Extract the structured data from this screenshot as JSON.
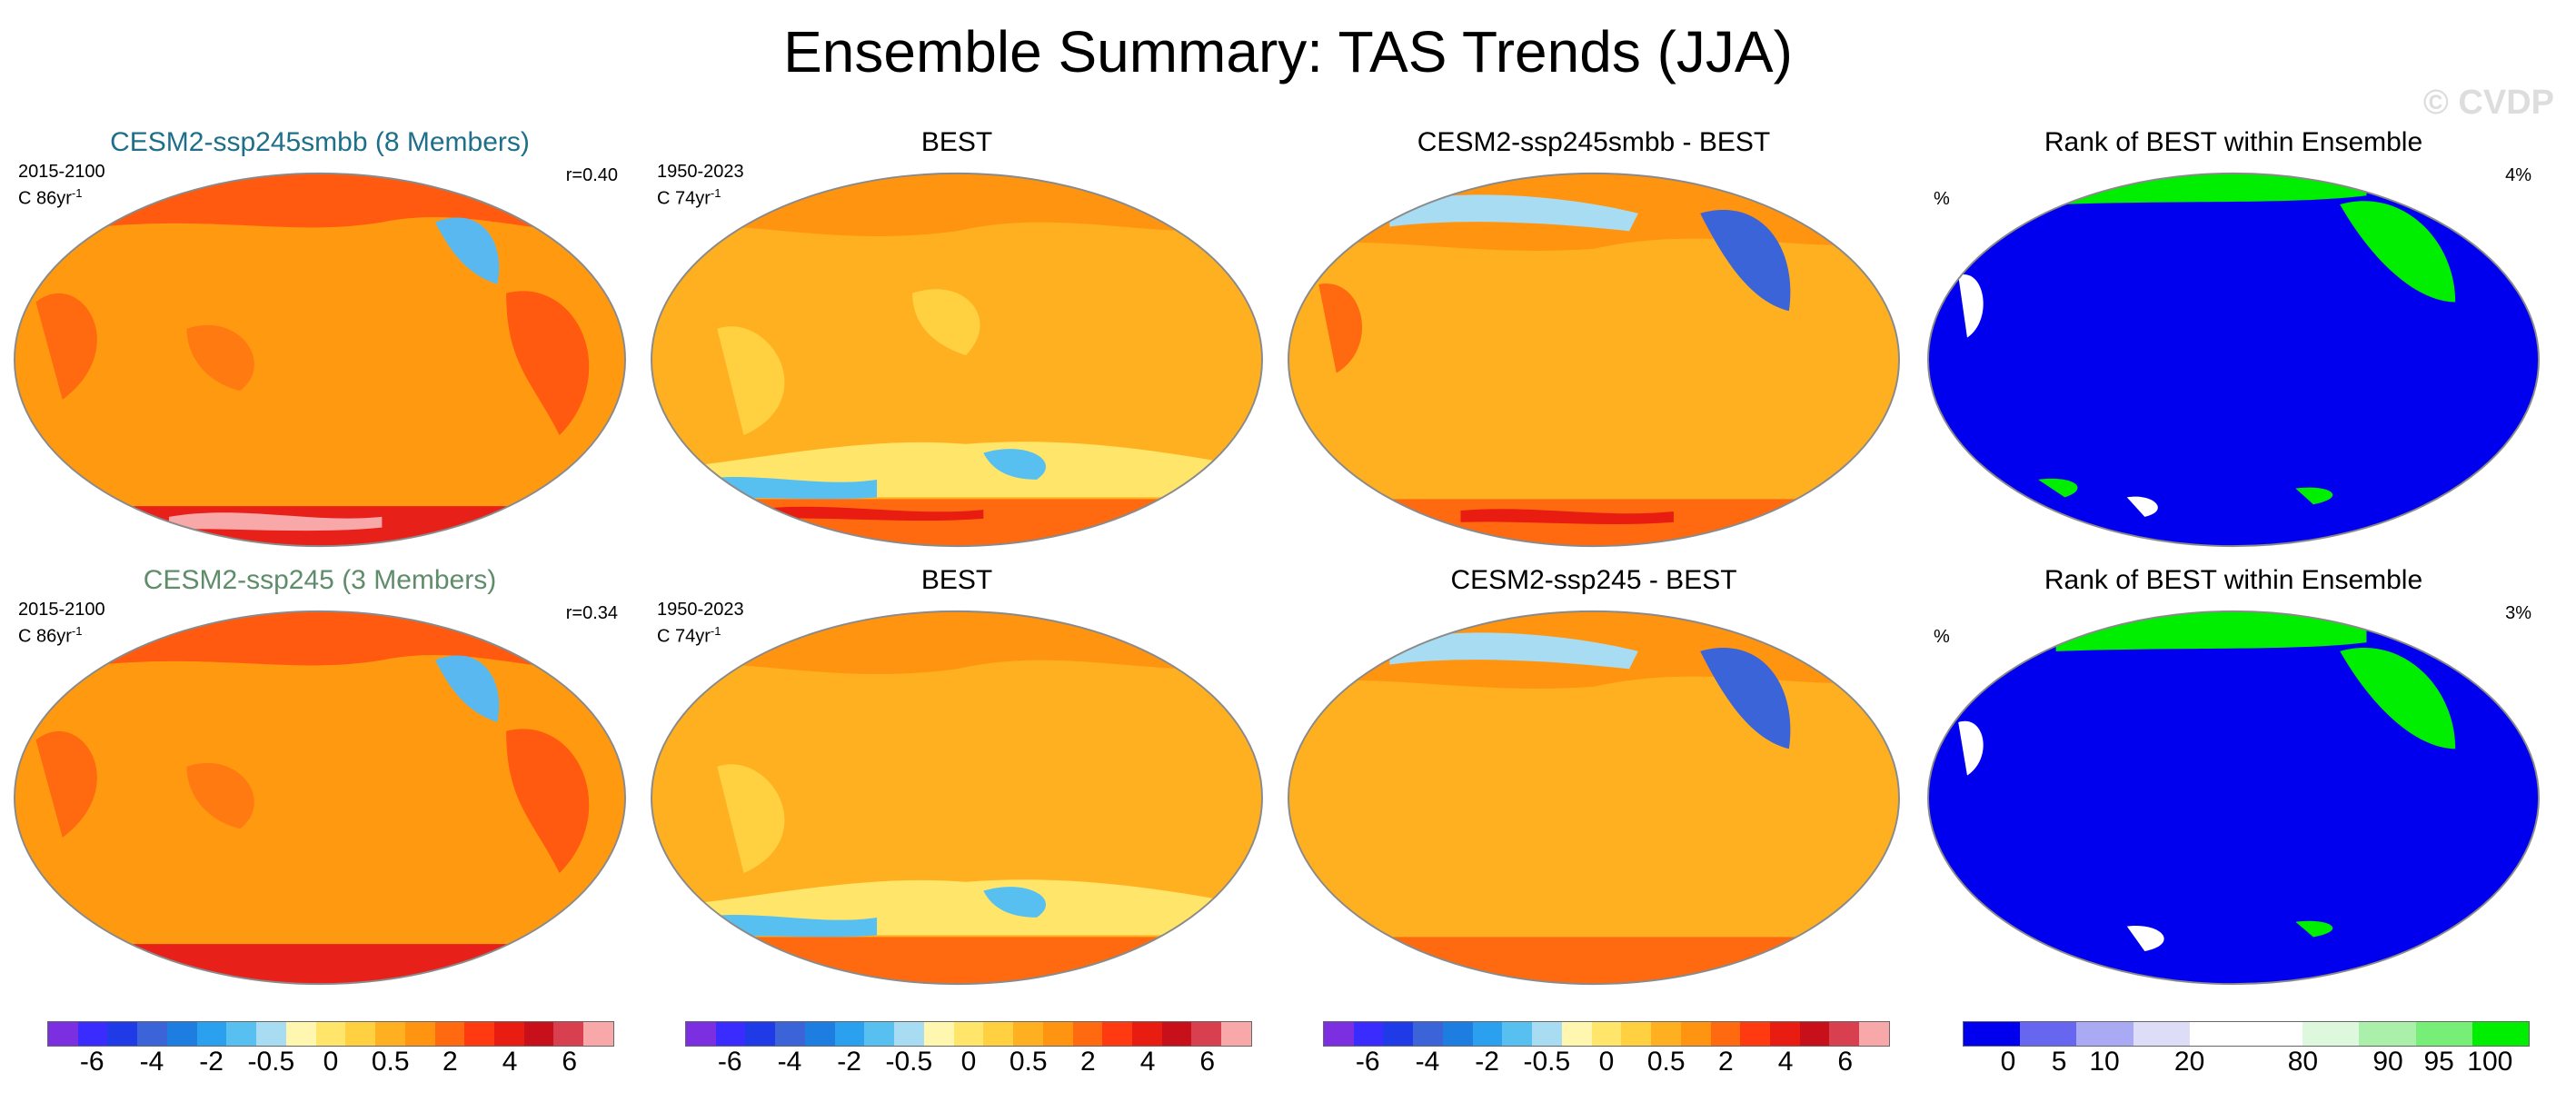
{
  "title": "Ensemble Summary: TAS Trends (JJA)",
  "watermark": "© CVDP",
  "colors": {
    "land_line": "#8a8a8a",
    "diverging_palette": [
      "#7b2fe0",
      "#3a2bff",
      "#1f3be8",
      "#3b64d8",
      "#1d7de0",
      "#2aa0ee",
      "#58c0f0",
      "#a8dcf2",
      "#fff6b0",
      "#ffe66a",
      "#ffd040",
      "#ffb020",
      "#ff9410",
      "#ff6a10",
      "#ff3a10",
      "#e81c10",
      "#c8101a",
      "#d84050",
      "#f8a8a8"
    ],
    "rank_palette": [
      "#0000ee",
      "#6666f0",
      "#aaaaf4",
      "#ddddf8",
      "#ffffff",
      "#ffffff",
      "#ddf8dd",
      "#aaf0aa",
      "#77ee77",
      "#00ee00"
    ]
  },
  "rows": [
    {
      "model_title": "CESM2-ssp245smbb (8 Members)",
      "model_period": "2015-2100",
      "model_units": "C 86yr",
      "model_units_sup": "-1",
      "model_r": "r=0.40",
      "obs_title": "BEST",
      "obs_period": "1950-2023",
      "obs_units": "C 74yr",
      "obs_units_sup": "-1",
      "diff_title": "CESM2-ssp245smbb - BEST",
      "rank_title": "Rank of BEST within Ensemble",
      "rank_unit": "%",
      "rank_pct": "4%"
    },
    {
      "model_title": "CESM2-ssp245 (3 Members)",
      "model_period": "2015-2100",
      "model_units": "C 86yr",
      "model_units_sup": "-1",
      "model_r": "r=0.34",
      "obs_title": "BEST",
      "obs_period": "1950-2023",
      "obs_units": "C 74yr",
      "obs_units_sup": "-1",
      "diff_title": "CESM2-ssp245 - BEST",
      "rank_title": "Rank of BEST within Ensemble",
      "rank_unit": "%",
      "rank_pct": "3%"
    }
  ],
  "colorbars": {
    "diverging_labels": [
      "-6",
      "-4",
      "-2",
      "-0.5",
      "0",
      "0.5",
      "2",
      "4",
      "6"
    ],
    "rank_labels": [
      "0",
      "5",
      "10",
      "20",
      "80",
      "90",
      "95",
      "100"
    ]
  },
  "chart_data": [
    {
      "type": "heatmap",
      "title": "CESM2-ssp245smbb (8 Members)",
      "subtitle": "2015-2100",
      "units": "C 86yr-1",
      "r": 0.4,
      "field": "TAS trend JJA"
    },
    {
      "type": "heatmap",
      "title": "BEST",
      "subtitle": "1950-2023",
      "units": "C 74yr-1",
      "field": "TAS trend JJA"
    },
    {
      "type": "heatmap",
      "title": "CESM2-ssp245smbb - BEST",
      "field": "difference"
    },
    {
      "type": "heatmap",
      "title": "Rank of BEST within Ensemble",
      "units": "%",
      "rank_pct": 4
    },
    {
      "type": "heatmap",
      "title": "CESM2-ssp245 (3 Members)",
      "subtitle": "2015-2100",
      "units": "C 86yr-1",
      "r": 0.34,
      "field": "TAS trend JJA"
    },
    {
      "type": "heatmap",
      "title": "BEST",
      "subtitle": "1950-2023",
      "units": "C 74yr-1",
      "field": "TAS trend JJA"
    },
    {
      "type": "heatmap",
      "title": "CESM2-ssp245 - BEST",
      "field": "difference"
    },
    {
      "type": "heatmap",
      "title": "Rank of BEST within Ensemble",
      "units": "%",
      "rank_pct": 3
    },
    {
      "type": "colorbar",
      "levels": [
        -6,
        -4,
        -2,
        -0.5,
        0,
        0.5,
        2,
        4,
        6
      ]
    },
    {
      "type": "colorbar",
      "levels": [
        0,
        5,
        10,
        20,
        80,
        90,
        95,
        100
      ]
    }
  ]
}
